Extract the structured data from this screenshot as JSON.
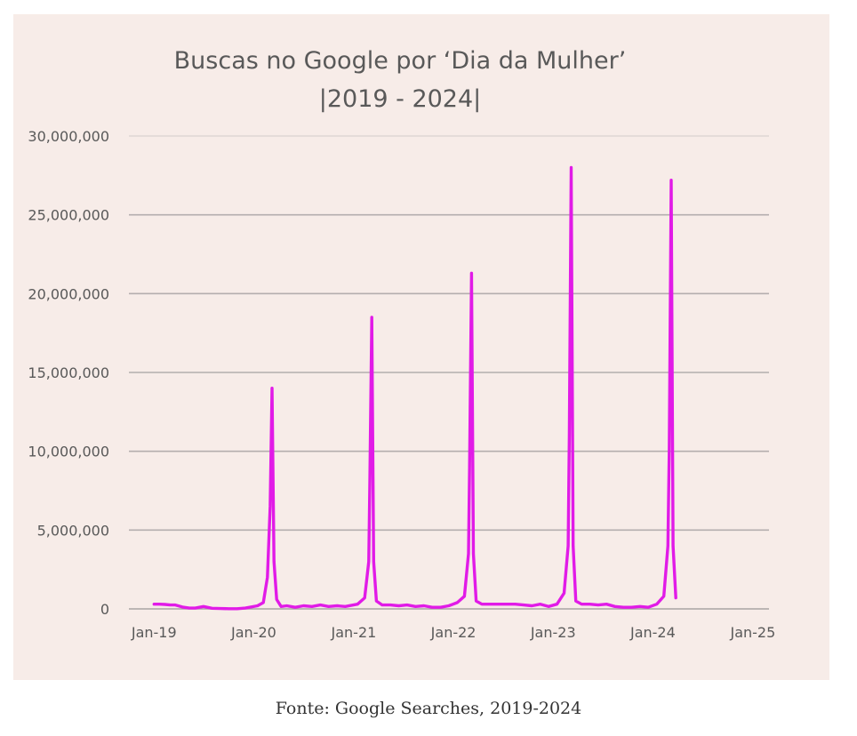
{
  "caption": "Fonte: Google Searches, 2019-2024",
  "chart_data": {
    "type": "line",
    "title": [
      "Buscas no Google por ‘Dia da Mulher’",
      "|2019 - 2024|"
    ],
    "xlabel": "",
    "ylabel": "",
    "grid": true,
    "legend": "none",
    "ylim": [
      0,
      30000000
    ],
    "xlim": [
      "2018-10-01",
      "2025-03-01"
    ],
    "yticks": [
      0,
      5000000,
      10000000,
      15000000,
      20000000,
      25000000,
      30000000
    ],
    "ytick_labels": [
      "0",
      "5,000,000",
      "10,000,000",
      "15,000,000",
      "20,000,000",
      "25,000,000",
      "30,000,000"
    ],
    "xticks": [
      "2019-01-01",
      "2020-01-01",
      "2021-01-01",
      "2022-01-01",
      "2023-01-01",
      "2024-01-01",
      "2025-01-01"
    ],
    "xtick_labels": [
      "Jan-19",
      "Jan-20",
      "Jan-21",
      "Jan-22",
      "Jan-23",
      "Jan-24",
      "Jan-25"
    ],
    "series": [
      {
        "color": "#e11be7",
        "x": [
          "2019-01-01",
          "2019-01-20",
          "2019-02-10",
          "2019-03-01",
          "2019-03-20",
          "2019-04-15",
          "2019-05-10",
          "2019-06-01",
          "2019-07-01",
          "2019-08-01",
          "2019-09-01",
          "2019-10-01",
          "2019-11-01",
          "2019-12-01",
          "2020-01-15",
          "2020-02-05",
          "2020-02-20",
          "2020-03-01",
          "2020-03-08",
          "2020-03-15",
          "2020-03-25",
          "2020-04-10",
          "2020-05-01",
          "2020-06-01",
          "2020-07-01",
          "2020-08-01",
          "2020-09-01",
          "2020-10-01",
          "2020-11-01",
          "2020-12-01",
          "2021-01-15",
          "2021-02-10",
          "2021-02-25",
          "2021-03-01",
          "2021-03-08",
          "2021-03-15",
          "2021-03-25",
          "2021-04-15",
          "2021-05-15",
          "2021-06-15",
          "2021-07-15",
          "2021-08-15",
          "2021-09-15",
          "2021-10-15",
          "2021-11-15",
          "2021-12-15",
          "2022-01-15",
          "2022-02-10",
          "2022-02-25",
          "2022-03-01",
          "2022-03-08",
          "2022-03-15",
          "2022-03-25",
          "2022-04-15",
          "2022-05-15",
          "2022-06-15",
          "2022-07-15",
          "2022-08-15",
          "2022-09-15",
          "2022-10-15",
          "2022-11-15",
          "2022-12-15",
          "2023-01-15",
          "2023-02-10",
          "2023-02-25",
          "2023-03-01",
          "2023-03-08",
          "2023-03-15",
          "2023-03-25",
          "2023-04-15",
          "2023-05-15",
          "2023-06-15",
          "2023-07-15",
          "2023-08-15",
          "2023-09-15",
          "2023-10-15",
          "2023-11-15",
          "2023-12-15",
          "2024-01-15",
          "2024-02-10",
          "2024-02-25",
          "2024-03-01",
          "2024-03-08",
          "2024-03-15",
          "2024-03-25"
        ],
        "values": [
          300000,
          300000,
          280000,
          250000,
          250000,
          120000,
          50000,
          50000,
          150000,
          40000,
          20000,
          10000,
          10000,
          50000,
          200000,
          400000,
          2000000,
          6500000,
          14000000,
          3000000,
          600000,
          150000,
          200000,
          100000,
          200000,
          150000,
          250000,
          150000,
          200000,
          150000,
          300000,
          700000,
          3000000,
          8000000,
          18500000,
          3000000,
          500000,
          250000,
          250000,
          200000,
          250000,
          150000,
          200000,
          100000,
          100000,
          200000,
          400000,
          800000,
          3500000,
          9000000,
          21300000,
          3500000,
          500000,
          300000,
          300000,
          300000,
          300000,
          300000,
          250000,
          200000,
          300000,
          150000,
          300000,
          1000000,
          4000000,
          11000000,
          28000000,
          4000000,
          500000,
          300000,
          300000,
          250000,
          300000,
          150000,
          100000,
          100000,
          150000,
          100000,
          300000,
          800000,
          4000000,
          10000000,
          27200000,
          4000000,
          700000
        ]
      }
    ]
  }
}
